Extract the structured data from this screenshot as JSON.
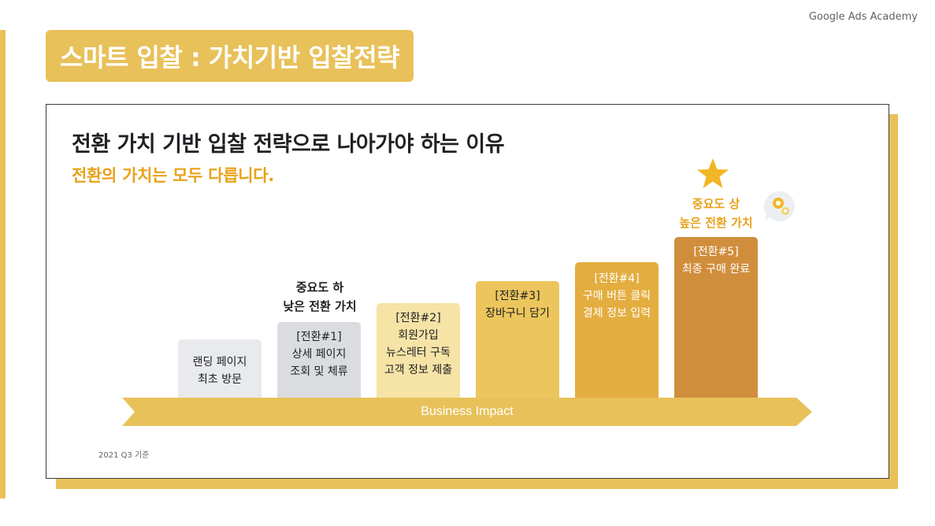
{
  "brand": "Google Ads Academy",
  "slide_title": "스마트 입찰 : 가치기반 입찰전략",
  "card": {
    "title": "전환 가치 기반 입찰 전략으로 나아가야 하는 이유",
    "subtitle": "전환의 가치는 모두 다릅니다."
  },
  "callouts": {
    "low": {
      "line1": "중요도 하",
      "line2": "낮은 전환 가치"
    },
    "high": {
      "line1": "중요도 상",
      "line2": "높은 전환 가치"
    }
  },
  "steps": [
    {
      "lines": [
        "랜딩 페이지",
        "최초 방문"
      ],
      "color": "#e8eaed"
    },
    {
      "lines": [
        "[전환#1]",
        "상세 페이지",
        "조회 및 체류"
      ],
      "color": "#dadce0"
    },
    {
      "lines": [
        "[전환#2]",
        "회원가입",
        "뉴스레터 구독",
        "고객 정보 제출"
      ],
      "color": "#f6e3a6"
    },
    {
      "lines": [
        "[전환#3]",
        "장바구니 담기"
      ],
      "color": "#ecc65c"
    },
    {
      "lines": [
        "[전환#4]",
        "구매 버튼 클릭",
        "결제 정보 입력"
      ],
      "color": "#e3ad3f"
    },
    {
      "lines": [
        "[전환#5]",
        "최종 구매 완료"
      ],
      "color": "#d08e3c"
    }
  ],
  "axis_label": "Business Impact",
  "footnote": "2021 Q3 기준",
  "icons": {
    "star": "star-icon",
    "gear": "gear-bubble-icon"
  },
  "colors": {
    "accent": "#e8c15a",
    "subtitle": "#e8a21a",
    "high_callout": "#e8a21a"
  }
}
